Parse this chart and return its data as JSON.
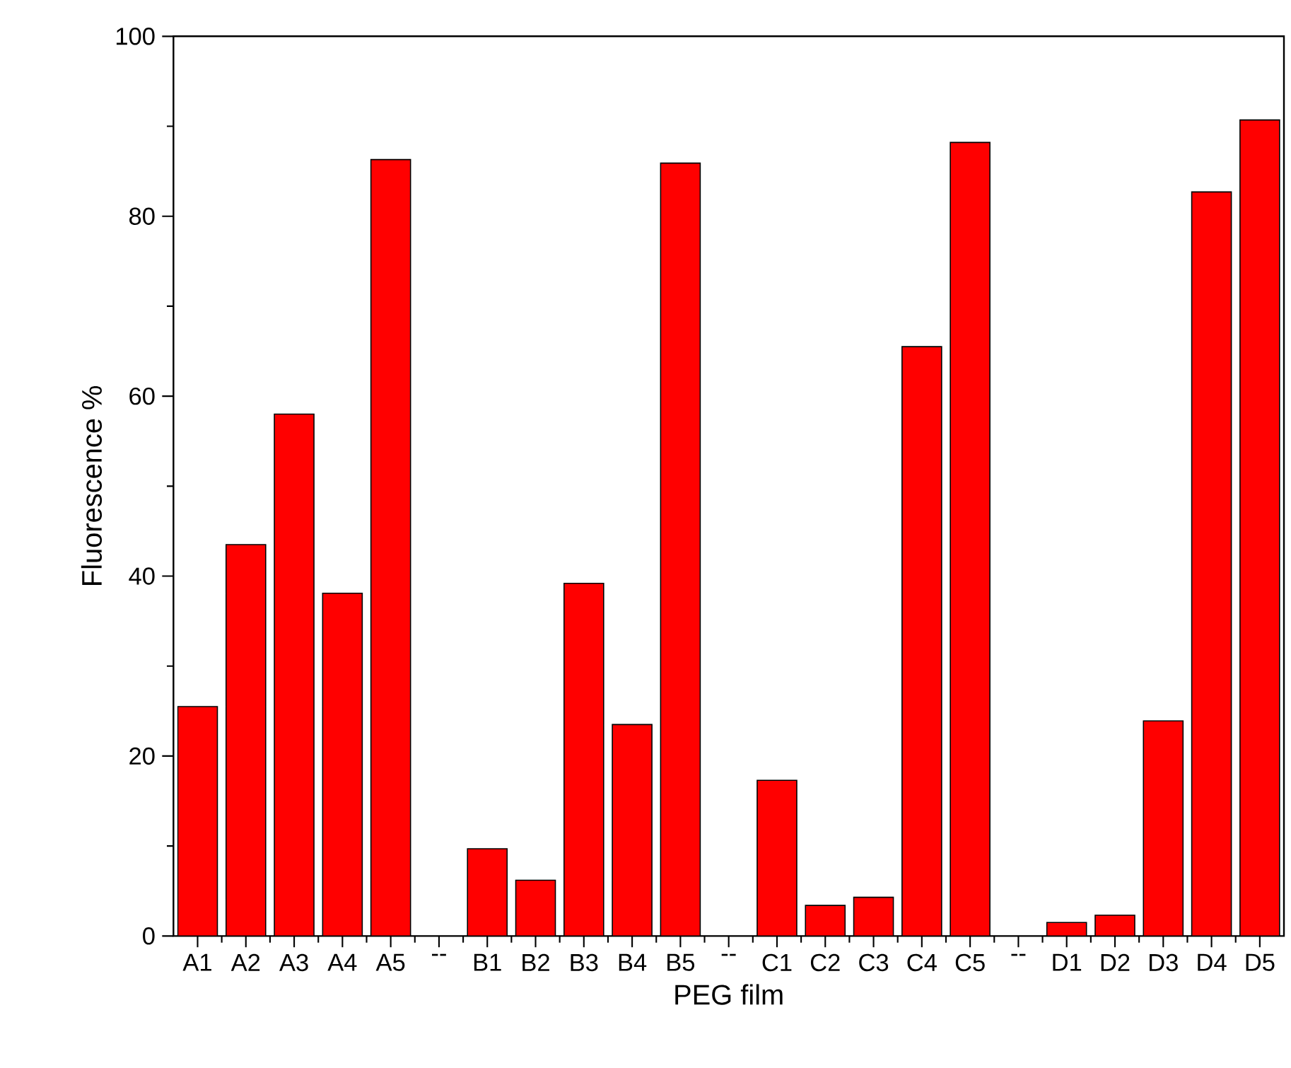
{
  "chart_data": {
    "type": "bar",
    "xlabel": "PEG film",
    "ylabel": "Fluorescence %",
    "categories": [
      "A1",
      "A2",
      "A3",
      "A4",
      "A5",
      "--",
      "B1",
      "B2",
      "B3",
      "B4",
      "B5",
      "--",
      "C1",
      "C2",
      "C3",
      "C4",
      "C5",
      "--",
      "D1",
      "D2",
      "D3",
      "D4",
      "D5"
    ],
    "values": [
      25.5,
      43.5,
      58.0,
      38.1,
      86.3,
      null,
      9.7,
      6.2,
      39.2,
      23.5,
      85.9,
      null,
      17.3,
      3.4,
      4.3,
      65.5,
      88.2,
      null,
      1.5,
      2.3,
      23.9,
      82.7,
      90.7
    ],
    "color": "#ff0000",
    "ylim": [
      0,
      100
    ],
    "yticks": [
      0,
      20,
      40,
      60,
      80,
      100
    ],
    "grid": false
  }
}
